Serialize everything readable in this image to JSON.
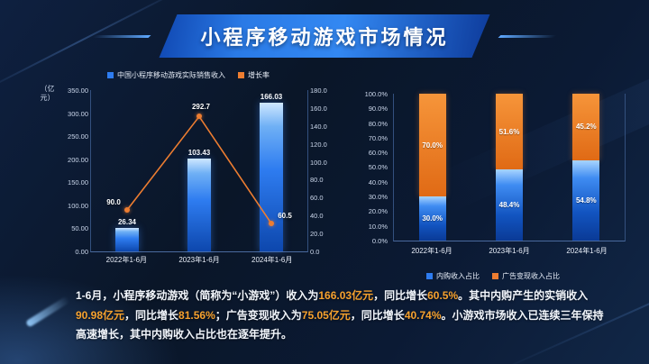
{
  "title": "小程序移动游戏市场情况",
  "colors": {
    "background": "#0b1a34",
    "banner_blue": "#2a7ae6",
    "bar_blue": "#2e7cf0",
    "line_orange": "#ed7d31",
    "highlight_orange": "#f7a22e"
  },
  "chart_data": [
    {
      "type": "bar",
      "subtype": "bar+line combo",
      "y_unit": "（亿元）",
      "categories": [
        "2022年1-6月",
        "2023年1-6月",
        "2024年1-6月"
      ],
      "series": [
        {
          "name": "中国小程序移动游戏实际销售收入",
          "type": "bar",
          "color": "#2e7cf0",
          "values": [
            26.34,
            103.43,
            166.03
          ]
        },
        {
          "name": "增长率",
          "type": "line",
          "color": "#ed7d31",
          "values": [
            90.0,
            292.7,
            60.5
          ],
          "labels": [
            "90.0",
            "292.7",
            "60.5"
          ]
        }
      ],
      "left_axis": {
        "min": 0,
        "max": 350,
        "ticks": [
          "350.00",
          "300.00",
          "250.00",
          "200.00",
          "150.00",
          "100.00",
          "50.00",
          "0.00"
        ]
      },
      "right_axis": {
        "ticks": [
          "180.0",
          "160.0",
          "140.0",
          "120.0",
          "100.0",
          "80.0",
          "60.0",
          "40.0",
          "20.0",
          "0.0"
        ]
      },
      "bar_axis_max": 180,
      "line_axis_max": 350,
      "legend_position": "top",
      "grid": false
    },
    {
      "type": "bar",
      "subtype": "stacked-100",
      "categories": [
        "2022年1-6月",
        "2023年1-6月",
        "2024年1-6月"
      ],
      "series": [
        {
          "name": "内购收入占比",
          "color": "#2e7cf0",
          "values": [
            30.0,
            48.4,
            54.8
          ]
        },
        {
          "name": "广告变现收入占比",
          "color": "#ed7d31",
          "values": [
            70.0,
            51.6,
            45.2
          ]
        }
      ],
      "y_ticks": [
        "100.0%",
        "90.0%",
        "80.0%",
        "70.0%",
        "60.0%",
        "50.0%",
        "40.0%",
        "30.0%",
        "20.0%",
        "10.0%",
        "0.0%"
      ],
      "ylim": [
        0,
        100
      ],
      "legend_position": "bottom",
      "grid": false
    }
  ],
  "footer": {
    "segments": [
      {
        "text": "1-6月，小程序移动游戏（简称为“小游戏”）收入为",
        "highlight": false
      },
      {
        "text": "166.03亿元",
        "highlight": true
      },
      {
        "text": "，同比增长",
        "highlight": false
      },
      {
        "text": "60.5%",
        "highlight": true
      },
      {
        "text": "。其中内购产生的实销收入",
        "highlight": false
      },
      {
        "text": "90.98亿元",
        "highlight": true
      },
      {
        "text": "，同比增长",
        "highlight": false
      },
      {
        "text": "81.56%",
        "highlight": true
      },
      {
        "text": "；广告变现收入为",
        "highlight": false
      },
      {
        "text": "75.05亿元",
        "highlight": true
      },
      {
        "text": "，同比增长",
        "highlight": false
      },
      {
        "text": "40.74%",
        "highlight": true
      },
      {
        "text": "。小游戏市场收入已连续三年保持高速增长，其中内购收入占比也在逐年提升。",
        "highlight": false
      }
    ]
  }
}
